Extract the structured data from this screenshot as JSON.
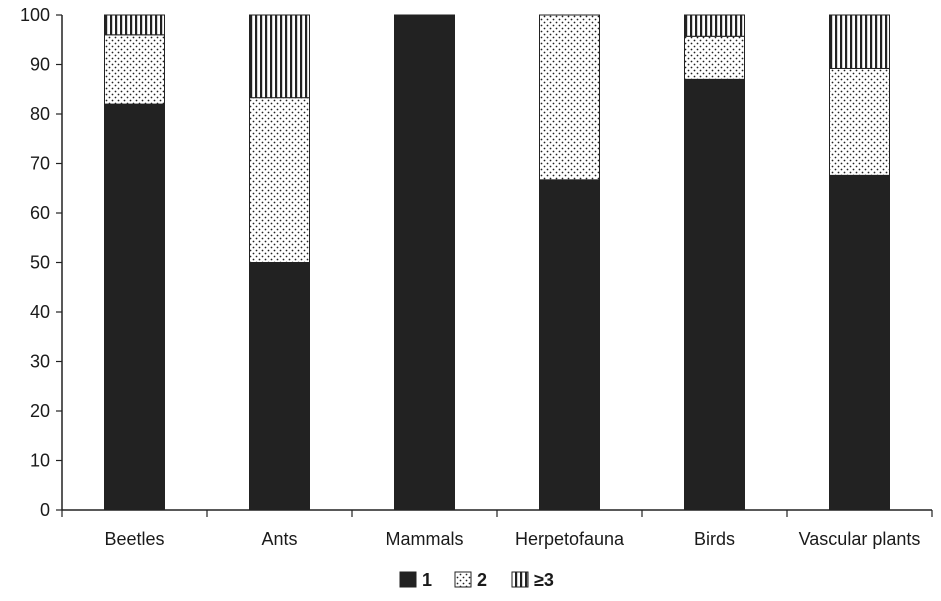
{
  "chart_data": {
    "type": "bar",
    "stacked": true,
    "categories": [
      "Beetles",
      "Ants",
      "Mammals",
      "Herpetofauna",
      "Birds",
      "Vascular plants"
    ],
    "series": [
      {
        "name": "1",
        "values": [
          82,
          50,
          100,
          66.7,
          87,
          67.6
        ],
        "pattern": "solid",
        "color": "#222222"
      },
      {
        "name": "2",
        "values": [
          14,
          33.3,
          0,
          33.3,
          8.7,
          21.6
        ],
        "pattern": "dots",
        "color": "#222222"
      },
      {
        "name": "≥3",
        "values": [
          4,
          16.7,
          0,
          0,
          4.3,
          10.8
        ],
        "pattern": "vertical-lines",
        "color": "#222222"
      }
    ],
    "ylim": [
      0,
      100
    ],
    "yticks": [
      0,
      10,
      20,
      30,
      40,
      50,
      60,
      70,
      80,
      90,
      100
    ],
    "xlabel": "",
    "ylabel": "",
    "title": "",
    "grid": false,
    "legend": {
      "placement": "bottom-center",
      "labels": [
        "1",
        "2",
        "≥3"
      ]
    }
  }
}
